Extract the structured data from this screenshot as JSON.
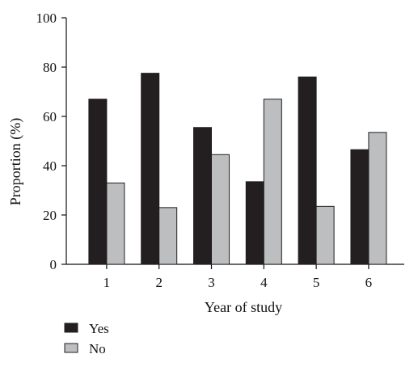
{
  "chart_data": {
    "type": "bar",
    "title": "",
    "xlabel": "Year of study",
    "ylabel": "Proportion (%)",
    "ylim": [
      0,
      100
    ],
    "yticks": [
      0,
      20,
      40,
      60,
      80,
      100
    ],
    "categories": [
      "1",
      "2",
      "3",
      "4",
      "5",
      "6"
    ],
    "series": [
      {
        "name": "Yes",
        "color": "#231f20",
        "values": [
          67,
          77.5,
          55.5,
          33.5,
          76,
          46.5
        ]
      },
      {
        "name": "No",
        "color": "#bcbec0",
        "values": [
          33,
          23,
          44.5,
          67,
          23.5,
          53.5
        ]
      }
    ],
    "grid": false,
    "legend_position": "bottom-left"
  }
}
